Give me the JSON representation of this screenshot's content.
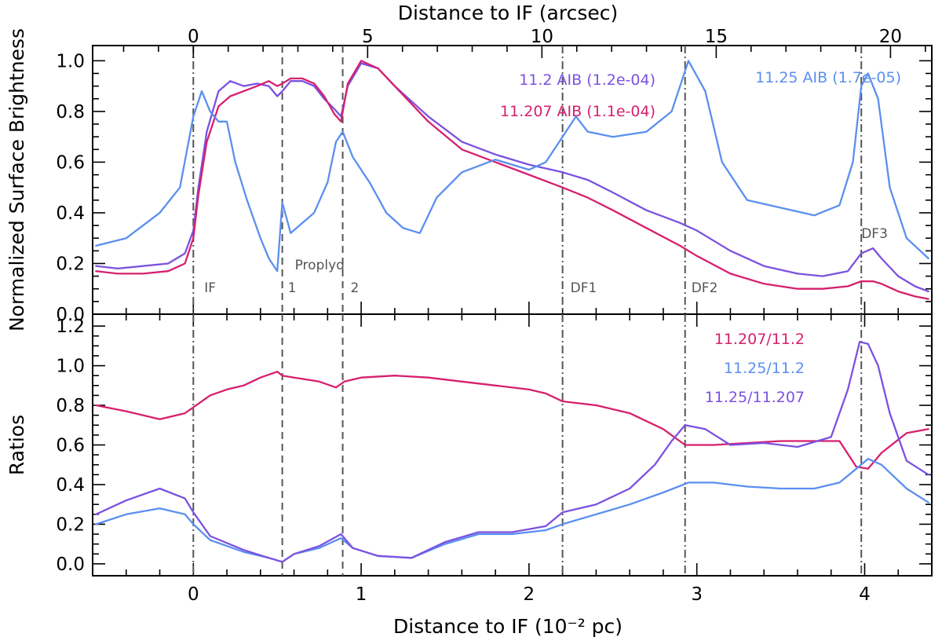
{
  "chart_data": [
    {
      "type": "line",
      "id": "top",
      "xlabel_bottom": "Distance to IF (10⁻² pc)",
      "xlabel_top": "Distance to IF (arcsec)",
      "ylabel": "Normalized Surface Brightness",
      "xlim": [
        -0.6,
        4.4
      ],
      "ylim": [
        0.0,
        1.06
      ],
      "yticks": [
        "0.0",
        "0.2",
        "0.4",
        "0.6",
        "0.8",
        "1.0"
      ],
      "xticks_bottom": [
        "0",
        "1",
        "2",
        "3",
        "4"
      ],
      "xticks_top": [
        "0",
        "5",
        "10",
        "15",
        "20"
      ],
      "top_axis_pc_per_arcsec": 0.2077,
      "markers": [
        {
          "x": 0.0,
          "label": "IF",
          "style": "dashdot"
        },
        {
          "x": 0.53,
          "label": "1",
          "style": "dash"
        },
        {
          "x": 0.89,
          "label": "2",
          "style": "dash"
        },
        {
          "x": 2.2,
          "label": "DF1",
          "style": "dashdot"
        },
        {
          "x": 2.93,
          "label": "DF2",
          "style": "dashdot"
        },
        {
          "x": 3.98,
          "label": "DF3",
          "style": "dashdot"
        }
      ],
      "annotation": "Proplyd",
      "legend": [
        {
          "label": "11.2 AIB (1.2e-04)",
          "color": "#7b52e0"
        },
        {
          "label": "11.207 AIB (1.1e-04)",
          "color": "#d6206e"
        },
        {
          "label": "11.25 AIB (1.7e-05)",
          "color": "#5b8ff0"
        }
      ],
      "series": [
        {
          "color": "#7b52e0",
          "x": [
            -0.58,
            -0.45,
            -0.3,
            -0.15,
            -0.05,
            0.0,
            0.03,
            0.08,
            0.15,
            0.22,
            0.3,
            0.38,
            0.45,
            0.5,
            0.53,
            0.58,
            0.65,
            0.72,
            0.78,
            0.84,
            0.88,
            0.92,
            1.0,
            1.1,
            1.2,
            1.4,
            1.6,
            1.8,
            2.0,
            2.2,
            2.35,
            2.5,
            2.7,
            2.9,
            3.0,
            3.2,
            3.4,
            3.6,
            3.75,
            3.9,
            3.98,
            4.05,
            4.1,
            4.2,
            4.3,
            4.38
          ],
          "y": [
            0.19,
            0.18,
            0.19,
            0.2,
            0.24,
            0.33,
            0.5,
            0.72,
            0.88,
            0.92,
            0.9,
            0.91,
            0.9,
            0.86,
            0.88,
            0.92,
            0.92,
            0.9,
            0.85,
            0.81,
            0.78,
            0.9,
            0.99,
            0.97,
            0.9,
            0.78,
            0.68,
            0.63,
            0.59,
            0.56,
            0.53,
            0.48,
            0.41,
            0.36,
            0.33,
            0.25,
            0.19,
            0.16,
            0.15,
            0.17,
            0.24,
            0.26,
            0.22,
            0.15,
            0.11,
            0.09
          ]
        },
        {
          "color": "#d6206e",
          "x": [
            -0.58,
            -0.45,
            -0.3,
            -0.15,
            -0.05,
            0.0,
            0.03,
            0.08,
            0.15,
            0.22,
            0.3,
            0.38,
            0.45,
            0.5,
            0.53,
            0.58,
            0.65,
            0.72,
            0.78,
            0.84,
            0.88,
            0.92,
            1.0,
            1.1,
            1.2,
            1.4,
            1.6,
            1.8,
            2.0,
            2.2,
            2.35,
            2.5,
            2.7,
            2.9,
            3.0,
            3.2,
            3.4,
            3.6,
            3.75,
            3.9,
            3.98,
            4.05,
            4.1,
            4.2,
            4.3,
            4.38
          ],
          "y": [
            0.17,
            0.16,
            0.16,
            0.17,
            0.2,
            0.3,
            0.47,
            0.68,
            0.82,
            0.86,
            0.88,
            0.9,
            0.92,
            0.9,
            0.91,
            0.93,
            0.93,
            0.91,
            0.86,
            0.79,
            0.76,
            0.91,
            1.0,
            0.97,
            0.9,
            0.76,
            0.65,
            0.6,
            0.55,
            0.5,
            0.46,
            0.41,
            0.34,
            0.27,
            0.23,
            0.16,
            0.12,
            0.1,
            0.1,
            0.11,
            0.13,
            0.13,
            0.12,
            0.09,
            0.07,
            0.06
          ]
        },
        {
          "color": "#5b8ff0",
          "x": [
            -0.58,
            -0.4,
            -0.2,
            -0.08,
            0.0,
            0.05,
            0.1,
            0.15,
            0.2,
            0.25,
            0.32,
            0.4,
            0.45,
            0.5,
            0.53,
            0.58,
            0.65,
            0.72,
            0.8,
            0.85,
            0.89,
            0.95,
            1.05,
            1.15,
            1.25,
            1.35,
            1.45,
            1.6,
            1.8,
            2.0,
            2.1,
            2.2,
            2.28,
            2.35,
            2.5,
            2.7,
            2.85,
            2.95,
            3.05,
            3.15,
            3.3,
            3.5,
            3.7,
            3.85,
            3.93,
            3.98,
            4.02,
            4.08,
            4.15,
            4.25,
            4.38
          ],
          "y": [
            0.27,
            0.3,
            0.4,
            0.5,
            0.78,
            0.88,
            0.8,
            0.76,
            0.76,
            0.6,
            0.45,
            0.3,
            0.22,
            0.17,
            0.44,
            0.32,
            0.36,
            0.4,
            0.52,
            0.68,
            0.72,
            0.62,
            0.52,
            0.4,
            0.34,
            0.32,
            0.46,
            0.56,
            0.61,
            0.57,
            0.6,
            0.7,
            0.78,
            0.72,
            0.7,
            0.72,
            0.8,
            1.0,
            0.88,
            0.6,
            0.45,
            0.42,
            0.39,
            0.43,
            0.6,
            0.9,
            0.95,
            0.85,
            0.5,
            0.3,
            0.22
          ]
        }
      ]
    },
    {
      "type": "line",
      "id": "bottom",
      "ylabel": "Ratios",
      "xlim": [
        -0.6,
        4.4
      ],
      "ylim": [
        -0.06,
        1.26
      ],
      "yticks": [
        "0.0",
        "0.2",
        "0.4",
        "0.6",
        "0.8",
        "1.0",
        "1.2"
      ],
      "legend": [
        {
          "label": "11.207/11.2",
          "color": "#d6206e"
        },
        {
          "label": "11.25/11.2",
          "color": "#5b8ff0"
        },
        {
          "label": "11.25/11.207",
          "color": "#7b52e0"
        }
      ],
      "series": [
        {
          "color": "#d6206e",
          "x": [
            -0.58,
            -0.4,
            -0.2,
            -0.05,
            0.0,
            0.1,
            0.2,
            0.3,
            0.4,
            0.5,
            0.53,
            0.6,
            0.75,
            0.85,
            0.9,
            1.0,
            1.2,
            1.4,
            1.6,
            1.8,
            2.0,
            2.1,
            2.2,
            2.4,
            2.6,
            2.8,
            2.93,
            3.1,
            3.3,
            3.5,
            3.7,
            3.85,
            3.95,
            4.02,
            4.1,
            4.25,
            4.38
          ],
          "y": [
            0.8,
            0.77,
            0.73,
            0.76,
            0.79,
            0.85,
            0.88,
            0.9,
            0.94,
            0.97,
            0.95,
            0.94,
            0.92,
            0.89,
            0.92,
            0.94,
            0.95,
            0.94,
            0.92,
            0.9,
            0.88,
            0.86,
            0.82,
            0.8,
            0.76,
            0.68,
            0.6,
            0.6,
            0.61,
            0.62,
            0.62,
            0.62,
            0.49,
            0.48,
            0.56,
            0.66,
            0.68
          ]
        },
        {
          "color": "#5b8ff0",
          "x": [
            -0.58,
            -0.4,
            -0.2,
            -0.05,
            0.0,
            0.1,
            0.3,
            0.45,
            0.53,
            0.6,
            0.75,
            0.88,
            0.95,
            1.1,
            1.3,
            1.5,
            1.7,
            1.9,
            2.1,
            2.2,
            2.4,
            2.6,
            2.8,
            2.95,
            3.1,
            3.3,
            3.5,
            3.7,
            3.85,
            3.95,
            4.02,
            4.1,
            4.25,
            4.38
          ],
          "y": [
            0.2,
            0.25,
            0.28,
            0.25,
            0.2,
            0.12,
            0.06,
            0.03,
            0.01,
            0.05,
            0.08,
            0.13,
            0.08,
            0.04,
            0.03,
            0.1,
            0.15,
            0.15,
            0.17,
            0.2,
            0.25,
            0.3,
            0.36,
            0.41,
            0.41,
            0.39,
            0.38,
            0.38,
            0.41,
            0.48,
            0.53,
            0.5,
            0.38,
            0.31
          ]
        },
        {
          "color": "#7b52e0",
          "x": [
            -0.58,
            -0.4,
            -0.2,
            -0.05,
            0.0,
            0.1,
            0.3,
            0.45,
            0.53,
            0.6,
            0.75,
            0.88,
            0.95,
            1.1,
            1.3,
            1.5,
            1.7,
            1.9,
            2.1,
            2.2,
            2.4,
            2.6,
            2.75,
            2.85,
            2.93,
            3.05,
            3.2,
            3.4,
            3.6,
            3.8,
            3.9,
            3.97,
            4.02,
            4.08,
            4.15,
            4.25,
            4.38
          ],
          "y": [
            0.25,
            0.32,
            0.38,
            0.33,
            0.26,
            0.14,
            0.07,
            0.03,
            0.01,
            0.05,
            0.09,
            0.15,
            0.08,
            0.04,
            0.03,
            0.11,
            0.16,
            0.16,
            0.19,
            0.26,
            0.3,
            0.38,
            0.5,
            0.62,
            0.7,
            0.68,
            0.6,
            0.61,
            0.59,
            0.64,
            0.88,
            1.12,
            1.11,
            1.0,
            0.76,
            0.52,
            0.45
          ]
        }
      ]
    }
  ]
}
